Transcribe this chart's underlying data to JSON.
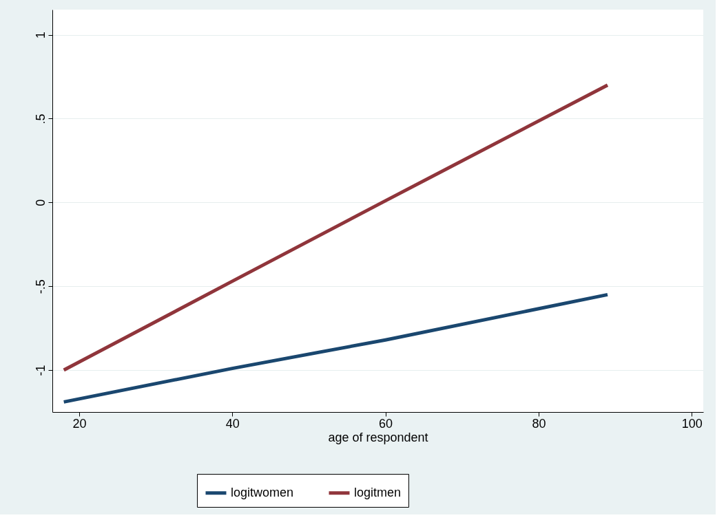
{
  "chart_data": {
    "type": "line",
    "xlabel": "age of respondent",
    "series": [
      {
        "name": "logitwomen",
        "color": "#1a476f",
        "x": [
          18,
          40,
          60,
          89
        ],
        "values": [
          -1.19,
          -0.99,
          -0.82,
          -0.55
        ]
      },
      {
        "name": "logitmen",
        "color": "#90353b",
        "x": [
          18,
          40,
          60,
          89
        ],
        "values": [
          -1.0,
          -0.47,
          0.01,
          0.7
        ]
      }
    ],
    "xlim": [
      16.5,
      101.5
    ],
    "xticks": [
      20,
      40,
      60,
      80,
      100
    ],
    "ylim": [
      -1.25,
      1.15
    ],
    "yticks": [
      {
        "value": -1,
        "label": "-1"
      },
      {
        "value": -0.5,
        "label": "-.5"
      },
      {
        "value": 0,
        "label": "0"
      },
      {
        "value": 0.5,
        "label": ".5"
      },
      {
        "value": 1,
        "label": "1"
      }
    ],
    "grid": "y",
    "legend": "bottom",
    "marker": "none",
    "line_style": "solid"
  }
}
